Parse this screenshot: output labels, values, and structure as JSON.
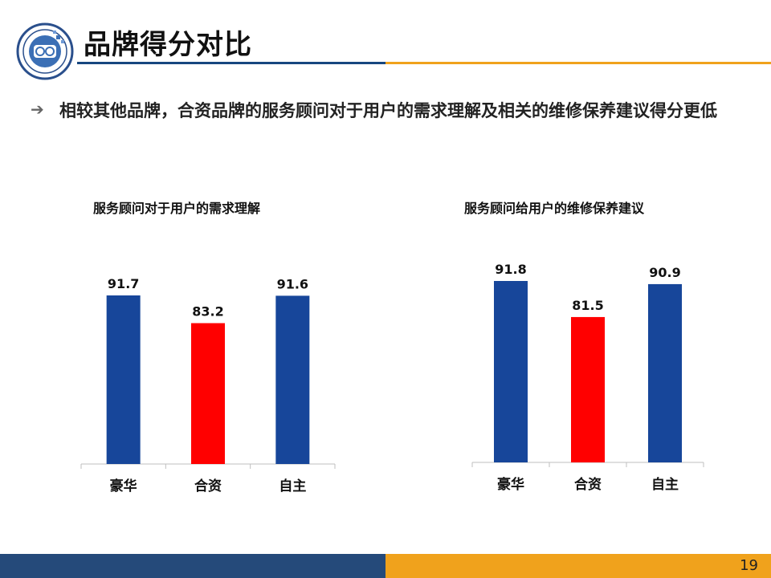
{
  "page": {
    "title": "品牌得分对比",
    "bullet": "相较其他品牌，合资品牌的服务顾问对于用户的需求理解及相关的维修保养建议得分更低",
    "page_number": "19",
    "colors": {
      "blue": "#17469a",
      "red": "#ff0000",
      "accent_blue": "#254a7a",
      "accent_orange": "#f0a21c"
    }
  },
  "chart_data": [
    {
      "type": "bar",
      "title": "服务顾问对于用户的需求理解",
      "categories": [
        "豪华",
        "合资",
        "自主"
      ],
      "values": [
        91.7,
        83.2,
        91.6
      ],
      "bar_colors": [
        "#17469a",
        "#ff0000",
        "#17469a"
      ],
      "xlabel": "",
      "ylabel": "",
      "ylim": [
        40,
        100
      ],
      "grid": false,
      "legend": "none"
    },
    {
      "type": "bar",
      "title": "服务顾问给用户的维修保养建议",
      "categories": [
        "豪华",
        "合资",
        "自主"
      ],
      "values": [
        91.8,
        81.5,
        90.9
      ],
      "bar_colors": [
        "#17469a",
        "#ff0000",
        "#17469a"
      ],
      "xlabel": "",
      "ylabel": "",
      "ylim": [
        40,
        100
      ],
      "grid": false,
      "legend": "none"
    }
  ]
}
